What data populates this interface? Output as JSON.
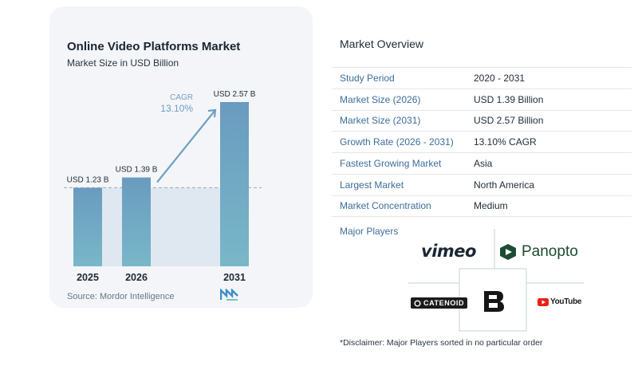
{
  "chart": {
    "title": "Online Video Platforms Market",
    "subtitle": "Market Size in USD Billion",
    "source": "Source:  Mordor Intelligence",
    "cagr_label": "CAGR",
    "cagr_value": "13.10%",
    "bar_color_top": "#6b9ec0",
    "bar_color_bottom": "#7ab8c9",
    "shade_color": "#dfe8f0"
  },
  "chart_data": {
    "type": "bar",
    "categories": [
      "2025",
      "2026",
      "2031"
    ],
    "values": [
      1.23,
      1.39,
      2.57
    ],
    "data_labels": [
      "USD 1.23 B",
      "USD 1.39 B",
      "USD 2.57 B"
    ],
    "title": "Online Video Platforms Market",
    "ylabel": "Market Size in USD Billion",
    "ylim": [
      0,
      2.57
    ],
    "grid": false,
    "reference_line": 1.23
  },
  "overview": {
    "title": "Market Overview",
    "rows": [
      {
        "key": "Study Period",
        "value": "2020 - 2031"
      },
      {
        "key": "Market Size (2026)",
        "value": "USD 1.39 Billion"
      },
      {
        "key": "Market Size (2031)",
        "value": "USD 2.57 Billion"
      },
      {
        "key": "Growth Rate (2026 - 2031)",
        "value": "13.10% CAGR"
      },
      {
        "key": "Fastest Growing Market",
        "value": "Asia"
      },
      {
        "key": "Largest Market",
        "value": "North America"
      },
      {
        "key": "Market Concentration",
        "value": "Medium"
      }
    ]
  },
  "players": {
    "title": "Major Players",
    "names": [
      "vimeo",
      "Panopto",
      "CATENOID",
      "B",
      "YouTube"
    ],
    "disclaimer": "*Disclaimer: Major Players sorted in no particular order"
  }
}
